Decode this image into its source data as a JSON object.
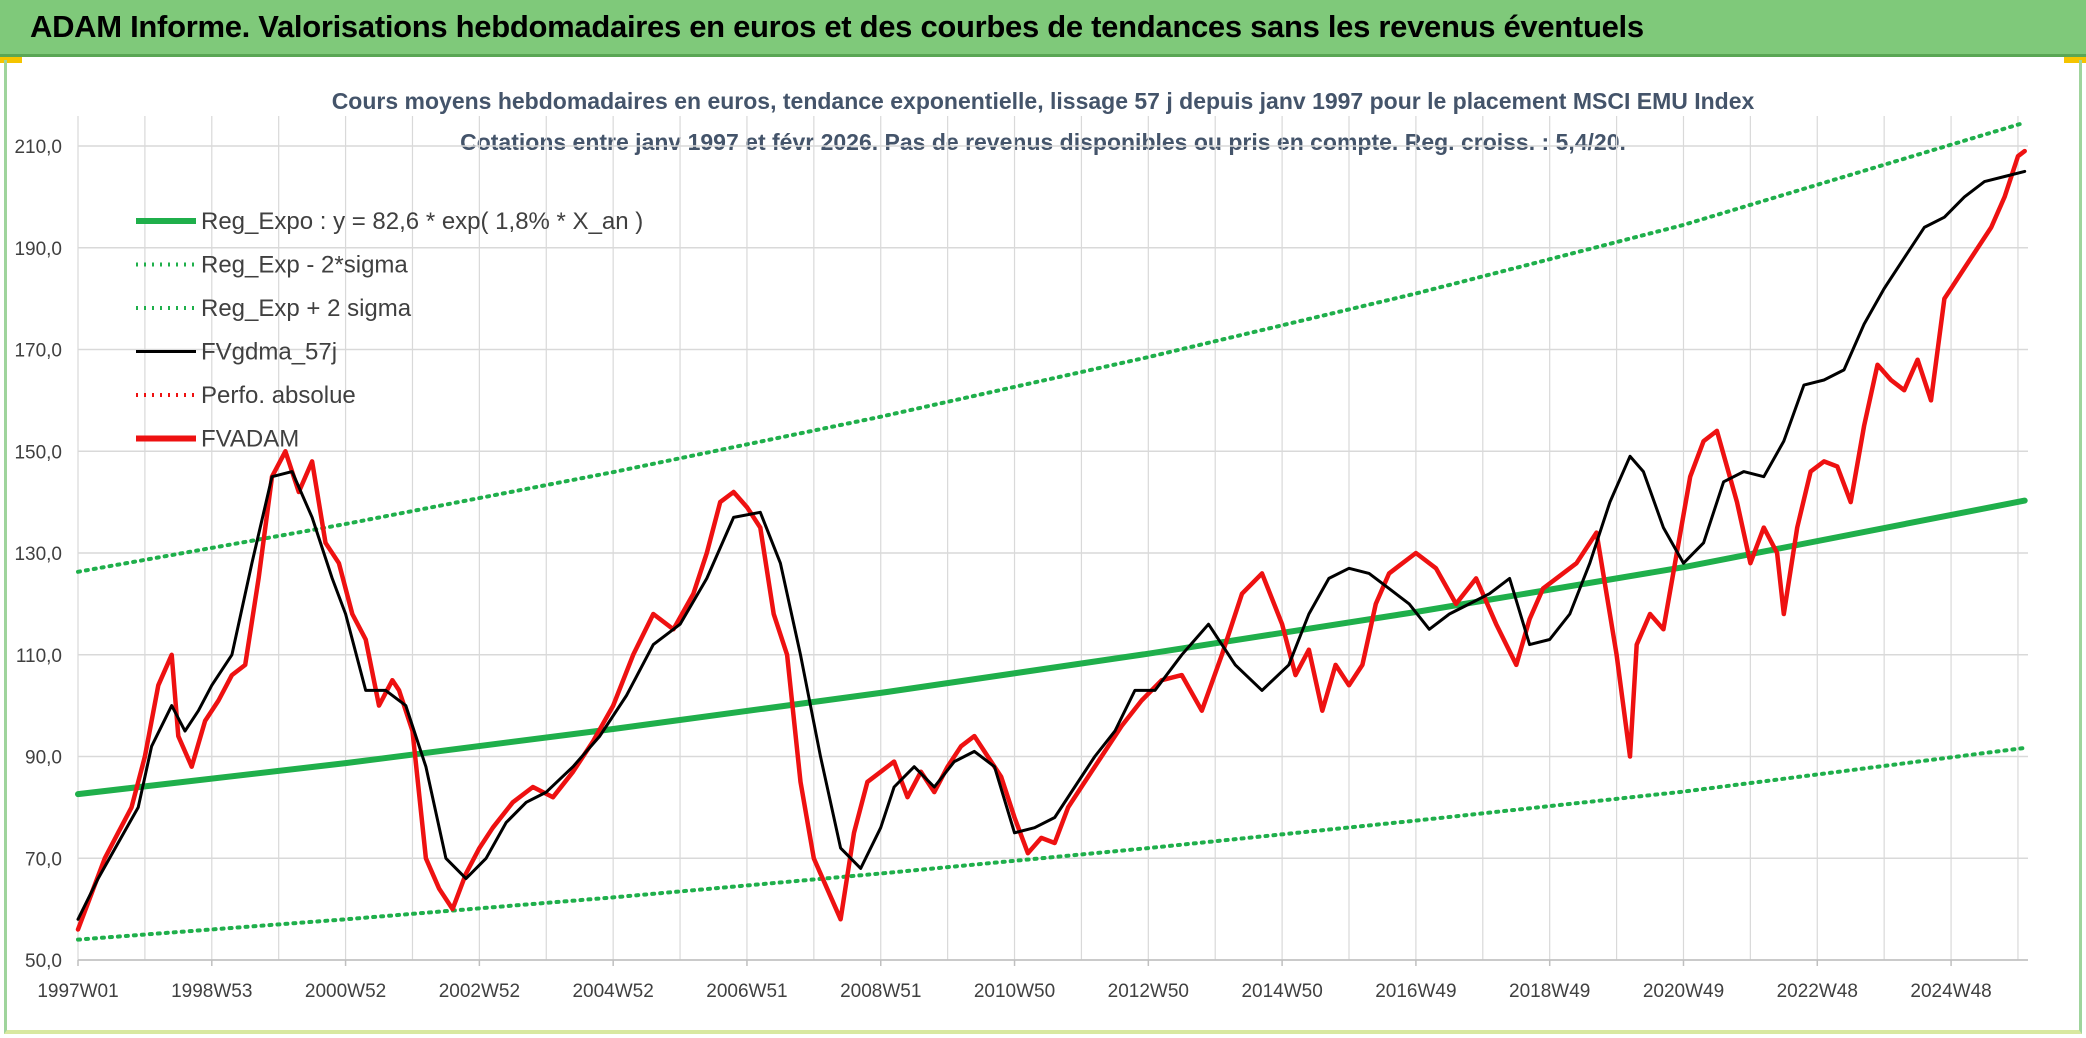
{
  "header": {
    "title": "ADAM Informe. Valorisations hebdomadaires en euros et des courbes de tendances sans les revenus éventuels"
  },
  "colors": {
    "header_bg": "#7fc97a",
    "trend_green": "#1faf4b",
    "smooth_black": "#000000",
    "price_red": "#ee1111",
    "perfo_red": "#ee1111",
    "grid": "#d9d9d9"
  },
  "chart_data": {
    "type": "line",
    "title": "Cours moyens hebdomadaires en euros, tendance exponentielle, lissage 57 j depuis janv 1997 pour le placement MSCI EMU Index",
    "subtitle": "Cotations entre janv 1997 et févr 2026. Pas de revenus disponibles ou pris en compte. Reg. croiss. : 5,4/20.",
    "xlabel": "",
    "ylabel": "",
    "xlim": [
      1997.0,
      2026.15
    ],
    "ylim": [
      50,
      210
    ],
    "y_ticks": [
      "50,0",
      "70,0",
      "90,0",
      "110,0",
      "130,0",
      "150,0",
      "170,0",
      "190,0",
      "210,0"
    ],
    "x_ticks": [
      {
        "label": "1997W01",
        "x": 1997.0
      },
      {
        "label": "1998W53",
        "x": 1999.0
      },
      {
        "label": "2000W52",
        "x": 2001.0
      },
      {
        "label": "2002W52",
        "x": 2003.0
      },
      {
        "label": "2004W52",
        "x": 2005.0
      },
      {
        "label": "2006W51",
        "x": 2007.0
      },
      {
        "label": "2008W51",
        "x": 2009.0
      },
      {
        "label": "2010W50",
        "x": 2011.0
      },
      {
        "label": "2012W50",
        "x": 2013.0
      },
      {
        "label": "2014W50",
        "x": 2015.0
      },
      {
        "label": "2016W49",
        "x": 2017.0
      },
      {
        "label": "2018W49",
        "x": 2019.0
      },
      {
        "label": "2020W49",
        "x": 2021.0
      },
      {
        "label": "2022W48",
        "x": 2023.0
      },
      {
        "label": "2024W48",
        "x": 2025.0
      }
    ],
    "grid": true,
    "legend_position": "top-left",
    "legend": [
      {
        "name": "Reg_Expo : y = 82,6 * exp( 1,8% *  X_an )",
        "style": "thick-solid",
        "color": "#1faf4b"
      },
      {
        "name": "Reg_Exp - 2*sigma",
        "style": "dotted",
        "color": "#1faf4b"
      },
      {
        "name": "Reg_Exp + 2 sigma",
        "style": "dotted",
        "color": "#1faf4b"
      },
      {
        "name": "FVgdma_57j",
        "style": "solid",
        "color": "#000000"
      },
      {
        "name": "Perfo. absolue",
        "style": "dotted",
        "color": "#ee1111"
      },
      {
        "name": "FVADAM",
        "style": "thick-solid",
        "color": "#ee1111"
      }
    ],
    "series": [
      {
        "name": "Reg_Expo : y = 82,6 * exp( 1,8% *  X_an )",
        "x": [
          1997.0,
          2001.0,
          2005.0,
          2009.0,
          2013.0,
          2017.0,
          2021.0,
          2026.1
        ],
        "values": [
          82.6,
          88.7,
          95.4,
          102.5,
          110.2,
          118.4,
          127.2,
          140.3
        ]
      },
      {
        "name": "Reg_Exp - 2*sigma",
        "x": [
          1997.0,
          2001.0,
          2005.0,
          2009.0,
          2013.0,
          2017.0,
          2021.0,
          2026.1
        ],
        "values": [
          54.0,
          58.0,
          62.3,
          67.0,
          72.0,
          77.4,
          83.1,
          91.7
        ]
      },
      {
        "name": "Reg_Exp + 2 sigma",
        "x": [
          1997.0,
          2001.0,
          2005.0,
          2009.0,
          2013.0,
          2017.0,
          2021.0,
          2026.1
        ],
        "values": [
          126.3,
          135.7,
          145.9,
          156.8,
          168.5,
          181.0,
          194.5,
          214.6
        ]
      },
      {
        "name": "FVgdma_57j",
        "x": [
          1997.0,
          1997.3,
          1997.6,
          1997.9,
          1998.1,
          1998.4,
          1998.6,
          1998.8,
          1999.0,
          1999.3,
          1999.6,
          1999.9,
          2000.2,
          2000.5,
          2000.8,
          2001.0,
          2001.3,
          2001.6,
          2001.9,
          2002.2,
          2002.5,
          2002.8,
          2003.1,
          2003.4,
          2003.7,
          2004.0,
          2004.4,
          2004.8,
          2005.2,
          2005.6,
          2006.0,
          2006.4,
          2006.8,
          2007.2,
          2007.5,
          2007.8,
          2008.1,
          2008.4,
          2008.7,
          2009.0,
          2009.2,
          2009.5,
          2009.8,
          2010.1,
          2010.4,
          2010.7,
          2011.0,
          2011.3,
          2011.6,
          2011.9,
          2012.2,
          2012.5,
          2012.8,
          2013.1,
          2013.5,
          2013.9,
          2014.3,
          2014.7,
          2015.1,
          2015.4,
          2015.7,
          2016.0,
          2016.3,
          2016.6,
          2016.9,
          2017.2,
          2017.5,
          2017.8,
          2018.1,
          2018.4,
          2018.7,
          2019.0,
          2019.3,
          2019.6,
          2019.9,
          2020.2,
          2020.4,
          2020.7,
          2021.0,
          2021.3,
          2021.6,
          2021.9,
          2022.2,
          2022.5,
          2022.8,
          2023.1,
          2023.4,
          2023.7,
          2024.0,
          2024.3,
          2024.6,
          2024.9,
          2025.2,
          2025.5,
          2025.8,
          2026.1
        ],
        "values": [
          58,
          66,
          73,
          80,
          92,
          100,
          95,
          99,
          104,
          110,
          128,
          145,
          146,
          137,
          125,
          118,
          103,
          103,
          100,
          88,
          70,
          66,
          70,
          77,
          81,
          83,
          88,
          94,
          102,
          112,
          116,
          125,
          137,
          138,
          128,
          110,
          90,
          72,
          68,
          76,
          84,
          88,
          84,
          89,
          91,
          88,
          75,
          76,
          78,
          84,
          90,
          95,
          103,
          103,
          110,
          116,
          108,
          103,
          108,
          118,
          125,
          127,
          126,
          123,
          120,
          115,
          118,
          120,
          122,
          125,
          112,
          113,
          118,
          128,
          140,
          149,
          146,
          135,
          128,
          132,
          144,
          146,
          145,
          152,
          163,
          164,
          166,
          175,
          182,
          188,
          194,
          196,
          200,
          203,
          204,
          205
        ]
      },
      {
        "name": "FVADAM",
        "x": [
          1997.0,
          1997.2,
          1997.4,
          1997.6,
          1997.8,
          1998.0,
          1998.2,
          1998.4,
          1998.5,
          1998.7,
          1998.9,
          1999.1,
          1999.3,
          1999.5,
          1999.7,
          1999.9,
          2000.1,
          2000.3,
          2000.5,
          2000.7,
          2000.9,
          2001.1,
          2001.3,
          2001.5,
          2001.7,
          2001.8,
          2002.0,
          2002.2,
          2002.4,
          2002.6,
          2002.8,
          2003.0,
          2003.2,
          2003.5,
          2003.8,
          2004.1,
          2004.4,
          2004.7,
          2005.0,
          2005.3,
          2005.6,
          2005.9,
          2006.2,
          2006.4,
          2006.6,
          2006.8,
          2007.0,
          2007.2,
          2007.4,
          2007.6,
          2007.8,
          2008.0,
          2008.2,
          2008.4,
          2008.6,
          2008.8,
          2009.0,
          2009.2,
          2009.4,
          2009.6,
          2009.8,
          2010.0,
          2010.2,
          2010.4,
          2010.6,
          2010.8,
          2011.0,
          2011.2,
          2011.4,
          2011.6,
          2011.8,
          2012.0,
          2012.3,
          2012.6,
          2012.9,
          2013.2,
          2013.5,
          2013.8,
          2014.1,
          2014.4,
          2014.7,
          2015.0,
          2015.2,
          2015.4,
          2015.6,
          2015.8,
          2016.0,
          2016.2,
          2016.4,
          2016.6,
          2016.8,
          2017.0,
          2017.3,
          2017.6,
          2017.9,
          2018.2,
          2018.5,
          2018.7,
          2018.9,
          2019.1,
          2019.4,
          2019.7,
          2020.0,
          2020.2,
          2020.3,
          2020.5,
          2020.7,
          2020.9,
          2021.1,
          2021.3,
          2021.5,
          2021.8,
          2022.0,
          2022.2,
          2022.4,
          2022.5,
          2022.7,
          2022.9,
          2023.1,
          2023.3,
          2023.5,
          2023.7,
          2023.9,
          2024.1,
          2024.3,
          2024.5,
          2024.7,
          2024.9,
          2025.0,
          2025.2,
          2025.4,
          2025.6,
          2025.8,
          2026.0,
          2026.1
        ],
        "values": [
          56,
          63,
          70,
          75,
          80,
          90,
          104,
          110,
          94,
          88,
          97,
          101,
          106,
          108,
          125,
          145,
          150,
          142,
          148,
          132,
          128,
          118,
          113,
          100,
          105,
          103,
          95,
          70,
          64,
          60,
          67,
          72,
          76,
          81,
          84,
          82,
          87,
          93,
          100,
          110,
          118,
          115,
          122,
          130,
          140,
          142,
          139,
          135,
          118,
          110,
          85,
          70,
          64,
          58,
          75,
          85,
          87,
          89,
          82,
          87,
          83,
          88,
          92,
          94,
          90,
          86,
          78,
          71,
          74,
          73,
          80,
          84,
          90,
          96,
          101,
          105,
          106,
          99,
          110,
          122,
          126,
          116,
          106,
          111,
          99,
          108,
          104,
          108,
          120,
          126,
          128,
          130,
          127,
          120,
          125,
          116,
          108,
          117,
          123,
          125,
          128,
          134,
          110,
          90,
          112,
          118,
          115,
          130,
          145,
          152,
          154,
          140,
          128,
          135,
          130,
          118,
          135,
          146,
          148,
          147,
          140,
          155,
          167,
          164,
          162,
          168,
          160,
          180,
          182,
          186,
          190,
          194,
          200,
          208,
          209
        ]
      }
    ]
  }
}
